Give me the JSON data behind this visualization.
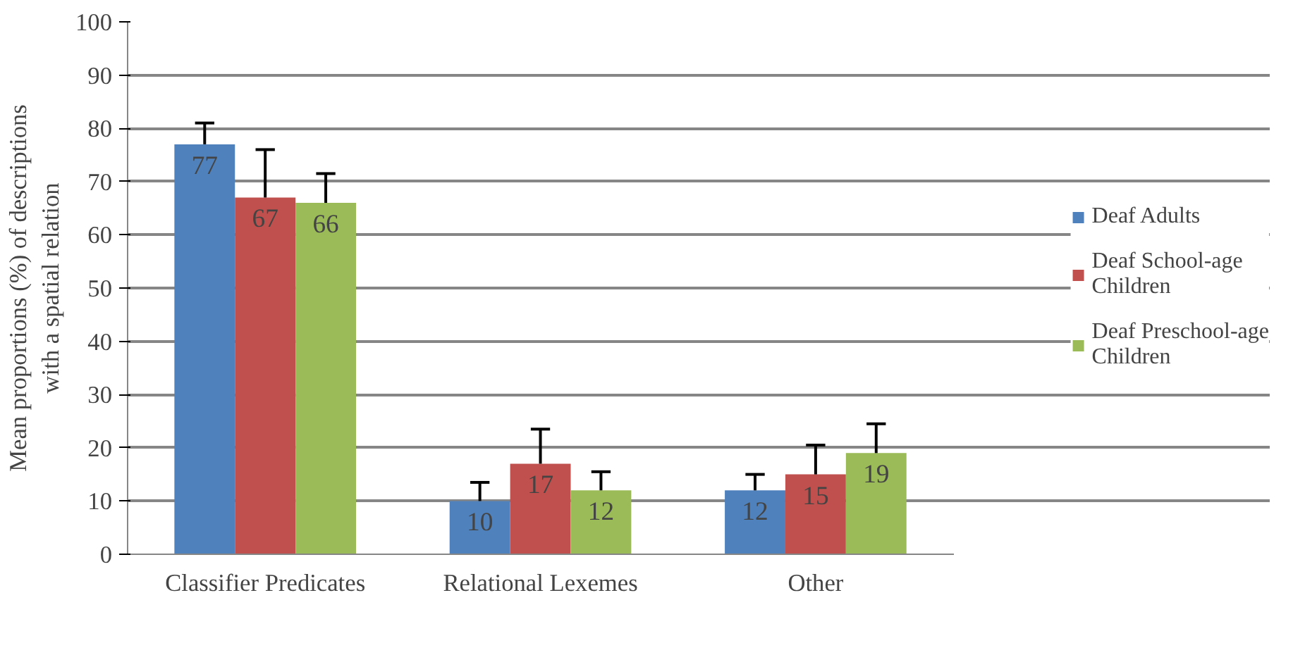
{
  "chart_data": {
    "type": "bar",
    "ylabel": "Mean proportions (%) of descriptions\nwith a spatial relation",
    "categories": [
      "Classifier Predicates",
      "Relational Lexemes",
      "Other"
    ],
    "series": [
      {
        "name": "Deaf Adults",
        "color": "#4f81bd",
        "values": [
          77,
          10,
          12
        ],
        "errors": [
          [
            77,
            81
          ],
          [
            10,
            13.5
          ],
          [
            12,
            15
          ]
        ]
      },
      {
        "name": "Deaf School-age\nChildren",
        "color": "#c0504d",
        "values": [
          67,
          17,
          15
        ],
        "errors": [
          [
            67,
            76
          ],
          [
            17,
            23.5
          ],
          [
            15,
            20.5
          ]
        ]
      },
      {
        "name": "Deaf Preschool-age\nChildren",
        "color": "#9bbb59",
        "values": [
          66,
          12,
          19
        ],
        "errors": [
          [
            66,
            71.5
          ],
          [
            12,
            15.5
          ],
          [
            19,
            24.5
          ]
        ]
      }
    ],
    "ylim": [
      0,
      100
    ],
    "yticks": [
      0,
      10,
      20,
      30,
      40,
      50,
      60,
      70,
      80,
      90,
      100
    ],
    "grid": "y",
    "legend": "right",
    "data_labels": true
  }
}
